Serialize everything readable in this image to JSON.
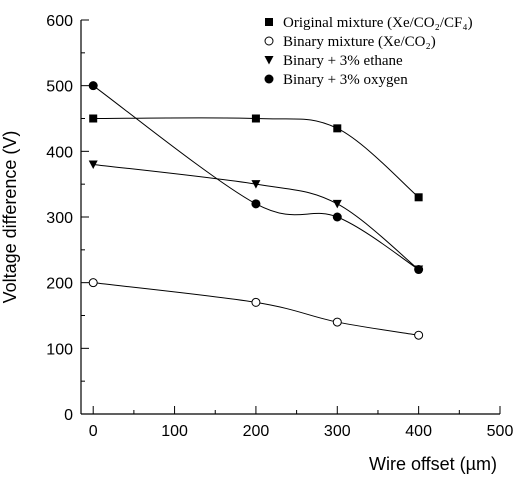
{
  "chart_data": {
    "type": "line",
    "xlabel": "Wire offset (µm)",
    "ylabel": "Voltage difference (V)",
    "xlim": [
      -15,
      500
    ],
    "ylim": [
      0,
      600
    ],
    "x_ticks": [
      0,
      100,
      200,
      300,
      400,
      500
    ],
    "y_ticks": [
      0,
      100,
      200,
      300,
      400,
      500,
      600
    ],
    "x_tick_labels": [
      "0",
      "100",
      "200",
      "300",
      "400",
      "500"
    ],
    "y_tick_labels": [
      "0",
      "100",
      "200",
      "300",
      "400",
      "500",
      "600"
    ],
    "grid": false,
    "legend_position": "top-right",
    "series": [
      {
        "name": "Original mixture (Xe/CO₂/CF₄)",
        "marker": "filled-square",
        "x": [
          0,
          200,
          300,
          400
        ],
        "y": [
          450,
          450,
          435,
          330
        ]
      },
      {
        "name": "Binary mixture (Xe/CO₂)",
        "marker": "open-circle",
        "x": [
          0,
          200,
          300,
          400
        ],
        "y": [
          200,
          170,
          140,
          120
        ]
      },
      {
        "name": "Binary + 3% ethane",
        "marker": "filled-triangle-down",
        "x": [
          0,
          200,
          300,
          400
        ],
        "y": [
          380,
          350,
          320,
          220
        ]
      },
      {
        "name": "Binary + 3% oxygen",
        "marker": "filled-circle",
        "x": [
          0,
          200,
          300,
          400
        ],
        "y": [
          500,
          320,
          300,
          220
        ]
      }
    ]
  }
}
